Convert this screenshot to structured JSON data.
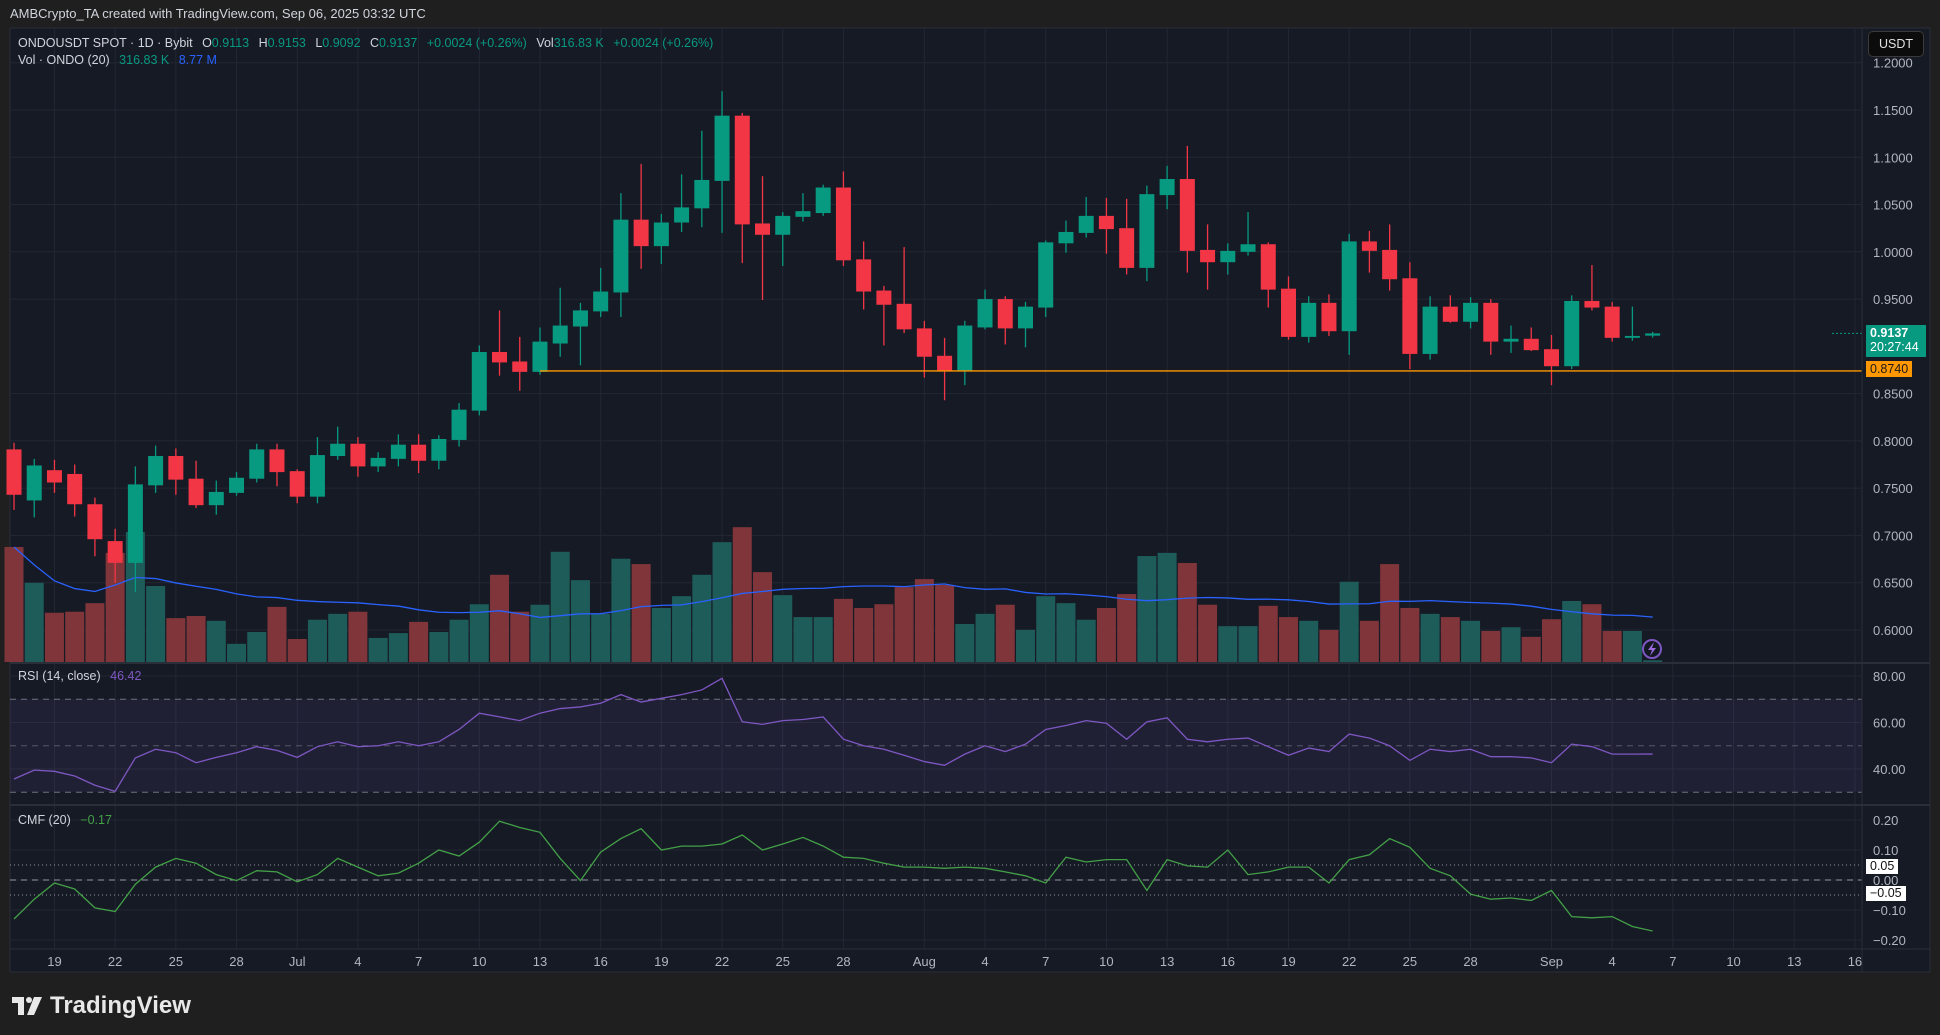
{
  "header": {
    "attribution": "AMBCrypto_TA created with TradingView.com, Sep 06, 2025 03:32 UTC"
  },
  "legend": {
    "symbol": "ONDOUSDT SPOT · 1D · Bybit",
    "o_label": "O",
    "o": "0.9113",
    "h_label": "H",
    "h": "0.9153",
    "l_label": "L",
    "l": "0.9092",
    "c_label": "C",
    "c": "0.9137",
    "change": "+0.0024 (+0.26%)",
    "vol_label": "Vol",
    "vol": "316.83 K",
    "vol_change": "+0.0024 (+0.26%)",
    "vol_ind": "Vol · ONDO (20)",
    "vol_ind_val": "316.83 K",
    "vol_ma_val": "8.77 M"
  },
  "price_axis": {
    "currency": "USDT",
    "ticks": [
      "1.2000",
      "1.1500",
      "1.1000",
      "1.0500",
      "1.0000",
      "0.9500",
      "0.8500",
      "0.8000",
      "0.7500",
      "0.7000",
      "0.6500",
      "0.6000"
    ],
    "current_price": "0.9137",
    "countdown": "20:27:44",
    "hline_label": "0.8740",
    "hline_value": 0.874
  },
  "rsi": {
    "label": "RSI (14, close)",
    "value": "46.42",
    "ticks": [
      "80.00",
      "60.00",
      "40.00"
    ]
  },
  "cmf": {
    "label": "CMF (20)",
    "value": "−0.17",
    "ticks": [
      "0.20",
      "0.10",
      "0.00",
      "−0.10",
      "−0.20"
    ],
    "box_pos": "0.05",
    "box_neg": "−0.05"
  },
  "logo": {
    "text": "TradingView"
  },
  "colors": {
    "up": "#089981",
    "down": "#f23645",
    "vol_up": "#1e5c5a",
    "vol_down": "#7f3539",
    "vol_ma": "#2962ff",
    "rsi": "#7e57c2",
    "cmf": "#43a047",
    "hline": "#ff9800"
  },
  "chart_data": {
    "type": "candlestick",
    "title": "ONDOUSDT SPOT · 1D · Bybit",
    "x_unit": "day index (0 = Jun 17, 2025)",
    "ylim": [
      0.57,
      1.2
    ],
    "time_labels": [
      {
        "label": "19",
        "day": 2
      },
      {
        "label": "22",
        "day": 5
      },
      {
        "label": "25",
        "day": 8
      },
      {
        "label": "28",
        "day": 11
      },
      {
        "label": "Jul",
        "day": 14
      },
      {
        "label": "4",
        "day": 17
      },
      {
        "label": "7",
        "day": 20
      },
      {
        "label": "10",
        "day": 23
      },
      {
        "label": "13",
        "day": 26
      },
      {
        "label": "16",
        "day": 29
      },
      {
        "label": "19",
        "day": 32
      },
      {
        "label": "22",
        "day": 35
      },
      {
        "label": "25",
        "day": 38
      },
      {
        "label": "28",
        "day": 41
      },
      {
        "label": "Aug",
        "day": 45
      },
      {
        "label": "4",
        "day": 48
      },
      {
        "label": "7",
        "day": 51
      },
      {
        "label": "10",
        "day": 54
      },
      {
        "label": "13",
        "day": 57
      },
      {
        "label": "16",
        "day": 60
      },
      {
        "label": "19",
        "day": 63
      },
      {
        "label": "22",
        "day": 66
      },
      {
        "label": "25",
        "day": 69
      },
      {
        "label": "28",
        "day": 72
      },
      {
        "label": "Sep",
        "day": 76
      },
      {
        "label": "4",
        "day": 79
      },
      {
        "label": "7",
        "day": 82
      },
      {
        "label": "10",
        "day": 85
      },
      {
        "label": "13",
        "day": 88
      },
      {
        "label": "16",
        "day": 91
      }
    ],
    "ohlc": [
      [
        0.791,
        0.798,
        0.727,
        0.743
      ],
      [
        0.737,
        0.781,
        0.719,
        0.774
      ],
      [
        0.769,
        0.78,
        0.745,
        0.756
      ],
      [
        0.765,
        0.775,
        0.72,
        0.733
      ],
      [
        0.733,
        0.74,
        0.678,
        0.696
      ],
      [
        0.694,
        0.707,
        0.65,
        0.671
      ],
      [
        0.671,
        0.773,
        0.64,
        0.754
      ],
      [
        0.753,
        0.795,
        0.745,
        0.784
      ],
      [
        0.784,
        0.792,
        0.743,
        0.759
      ],
      [
        0.76,
        0.779,
        0.729,
        0.732
      ],
      [
        0.732,
        0.758,
        0.722,
        0.746
      ],
      [
        0.745,
        0.767,
        0.742,
        0.761
      ],
      [
        0.76,
        0.797,
        0.756,
        0.791
      ],
      [
        0.791,
        0.797,
        0.752,
        0.767
      ],
      [
        0.768,
        0.77,
        0.734,
        0.741
      ],
      [
        0.741,
        0.804,
        0.734,
        0.785
      ],
      [
        0.784,
        0.815,
        0.78,
        0.797
      ],
      [
        0.797,
        0.804,
        0.762,
        0.773
      ],
      [
        0.773,
        0.788,
        0.767,
        0.782
      ],
      [
        0.781,
        0.807,
        0.773,
        0.796
      ],
      [
        0.796,
        0.807,
        0.766,
        0.779
      ],
      [
        0.779,
        0.806,
        0.77,
        0.802
      ],
      [
        0.801,
        0.84,
        0.794,
        0.833
      ],
      [
        0.832,
        0.901,
        0.827,
        0.894
      ],
      [
        0.894,
        0.938,
        0.869,
        0.883
      ],
      [
        0.884,
        0.91,
        0.853,
        0.873
      ],
      [
        0.873,
        0.92,
        0.87,
        0.905
      ],
      [
        0.903,
        0.962,
        0.889,
        0.922
      ],
      [
        0.921,
        0.946,
        0.88,
        0.938
      ],
      [
        0.937,
        0.983,
        0.931,
        0.958
      ],
      [
        0.957,
        1.062,
        0.931,
        1.034
      ],
      [
        1.034,
        1.093,
        0.982,
        1.006
      ],
      [
        1.006,
        1.04,
        0.987,
        1.031
      ],
      [
        1.031,
        1.082,
        1.021,
        1.047
      ],
      [
        1.046,
        1.128,
        1.026,
        1.076
      ],
      [
        1.075,
        1.17,
        1.02,
        1.144
      ],
      [
        1.144,
        1.147,
        0.988,
        1.029
      ],
      [
        1.03,
        1.08,
        0.949,
        1.018
      ],
      [
        1.018,
        1.042,
        0.985,
        1.038
      ],
      [
        1.037,
        1.062,
        1.032,
        1.043
      ],
      [
        1.041,
        1.071,
        1.038,
        1.068
      ],
      [
        1.068,
        1.085,
        0.985,
        0.991
      ],
      [
        0.992,
        1.011,
        0.939,
        0.958
      ],
      [
        0.959,
        0.964,
        0.901,
        0.944
      ],
      [
        0.945,
        1.005,
        0.914,
        0.918
      ],
      [
        0.919,
        0.927,
        0.867,
        0.889
      ],
      [
        0.89,
        0.909,
        0.843,
        0.874
      ],
      [
        0.874,
        0.927,
        0.859,
        0.922
      ],
      [
        0.92,
        0.96,
        0.918,
        0.95
      ],
      [
        0.95,
        0.953,
        0.902,
        0.919
      ],
      [
        0.919,
        0.947,
        0.899,
        0.942
      ],
      [
        0.941,
        1.012,
        0.931,
        1.01
      ],
      [
        1.009,
        1.033,
        0.999,
        1.021
      ],
      [
        1.02,
        1.058,
        1.015,
        1.038
      ],
      [
        1.038,
        1.057,
        0.998,
        1.024
      ],
      [
        1.025,
        1.056,
        0.976,
        0.983
      ],
      [
        0.983,
        1.07,
        0.969,
        1.061
      ],
      [
        1.06,
        1.091,
        1.045,
        1.077
      ],
      [
        1.077,
        1.112,
        0.978,
        1.001
      ],
      [
        1.002,
        1.029,
        0.96,
        0.989
      ],
      [
        0.989,
        1.009,
        0.976,
        1.001
      ],
      [
        1.0,
        1.042,
        0.996,
        1.008
      ],
      [
        1.008,
        1.01,
        0.941,
        0.96
      ],
      [
        0.961,
        0.974,
        0.907,
        0.91
      ],
      [
        0.91,
        0.953,
        0.904,
        0.946
      ],
      [
        0.946,
        0.955,
        0.911,
        0.916
      ],
      [
        0.916,
        1.019,
        0.891,
        1.011
      ],
      [
        1.011,
        1.022,
        0.978,
        1.001
      ],
      [
        1.002,
        1.029,
        0.959,
        0.971
      ],
      [
        0.972,
        0.989,
        0.876,
        0.892
      ],
      [
        0.892,
        0.953,
        0.886,
        0.942
      ],
      [
        0.942,
        0.954,
        0.925,
        0.926
      ],
      [
        0.926,
        0.952,
        0.919,
        0.946
      ],
      [
        0.946,
        0.95,
        0.891,
        0.905
      ],
      [
        0.905,
        0.922,
        0.893,
        0.908
      ],
      [
        0.908,
        0.92,
        0.895,
        0.896
      ],
      [
        0.897,
        0.912,
        0.859,
        0.879
      ],
      [
        0.879,
        0.954,
        0.876,
        0.948
      ],
      [
        0.948,
        0.986,
        0.938,
        0.941
      ],
      [
        0.942,
        0.947,
        0.905,
        0.909
      ],
      [
        0.909,
        0.942,
        0.906,
        0.911
      ],
      [
        0.9113,
        0.9153,
        0.9092,
        0.9137
      ]
    ],
    "volume_m": [
      21.5,
      14.8,
      9.2,
      9.4,
      11.0,
      20.4,
      24.3,
      14.2,
      8.2,
      8.6,
      7.7,
      3.4,
      5.6,
      10.3,
      4.3,
      7.9,
      9.0,
      9.4,
      4.5,
      5.4,
      7.5,
      5.6,
      7.9,
      10.8,
      16.3,
      9.4,
      10.7,
      20.6,
      15.3,
      9.0,
      19.3,
      18.3,
      10.1,
      12.3,
      16.3,
      22.4,
      25.2,
      16.8,
      12.5,
      8.4,
      8.4,
      11.8,
      10.1,
      10.8,
      14.0,
      15.5,
      14.4,
      7.1,
      9.0,
      10.7,
      6.0,
      12.3,
      11.0,
      7.9,
      10.1,
      12.7,
      19.8,
      20.4,
      18.5,
      10.7,
      6.7,
      6.7,
      10.5,
      8.4,
      7.7,
      6.0,
      15.0,
      7.7,
      18.3,
      10.1,
      9.0,
      8.4,
      7.7,
      5.8,
      6.5,
      4.7,
      8.0,
      11.4,
      10.8,
      5.8,
      5.8,
      0.32
    ],
    "rsi": [
      35.7,
      39.5,
      39,
      37,
      33,
      30.4,
      44.8,
      48.5,
      47,
      42.7,
      45,
      47,
      49.6,
      48,
      45,
      49.6,
      51.7,
      49.6,
      50,
      51.7,
      50,
      51.7,
      57,
      64,
      62.4,
      60.8,
      64,
      66,
      66.7,
      68.3,
      72,
      68.8,
      70.4,
      72,
      74,
      79,
      60.3,
      59.2,
      60.8,
      61.3,
      62.4,
      52.8,
      50,
      48.5,
      45.9,
      43.2,
      41.6,
      46.4,
      50,
      47.5,
      50.7,
      57,
      58.7,
      60.8,
      59.7,
      52.8,
      60.3,
      62,
      52.8,
      51.7,
      52.8,
      53.3,
      49.6,
      45.9,
      49,
      47.5,
      55,
      53.3,
      50,
      43.7,
      48.5,
      47.5,
      48.5,
      45.3,
      45.3,
      44.8,
      42.7,
      50.7,
      49.6,
      46.4,
      46.4,
      46.42
    ],
    "rsi_levels": [
      70,
      50,
      30
    ],
    "cmf": [
      -0.13,
      -0.064,
      -0.01,
      -0.03,
      -0.093,
      -0.105,
      -0.014,
      0.043,
      0.072,
      0.056,
      0.018,
      -0.002,
      0.031,
      0.027,
      -0.006,
      0.018,
      0.072,
      0.043,
      0.014,
      0.023,
      0.056,
      0.1,
      0.08,
      0.126,
      0.196,
      0.175,
      0.159,
      0.072,
      -0.002,
      0.093,
      0.138,
      0.171,
      0.1,
      0.113,
      0.113,
      0.12,
      0.15,
      0.1,
      0.12,
      0.142,
      0.113,
      0.076,
      0.072,
      0.056,
      0.043,
      0.043,
      0.039,
      0.043,
      0.039,
      0.027,
      0.014,
      -0.01,
      0.076,
      0.06,
      0.068,
      0.068,
      -0.035,
      0.068,
      0.047,
      0.043,
      0.1,
      0.018,
      0.027,
      0.043,
      0.043,
      -0.01,
      0.068,
      0.084,
      0.138,
      0.109,
      0.039,
      0.014,
      -0.047,
      -0.064,
      -0.06,
      -0.068,
      -0.035,
      -0.122,
      -0.126,
      -0.122,
      -0.155,
      -0.17
    ],
    "cmf_levels": [
      0.05,
      0,
      -0.05
    ]
  }
}
